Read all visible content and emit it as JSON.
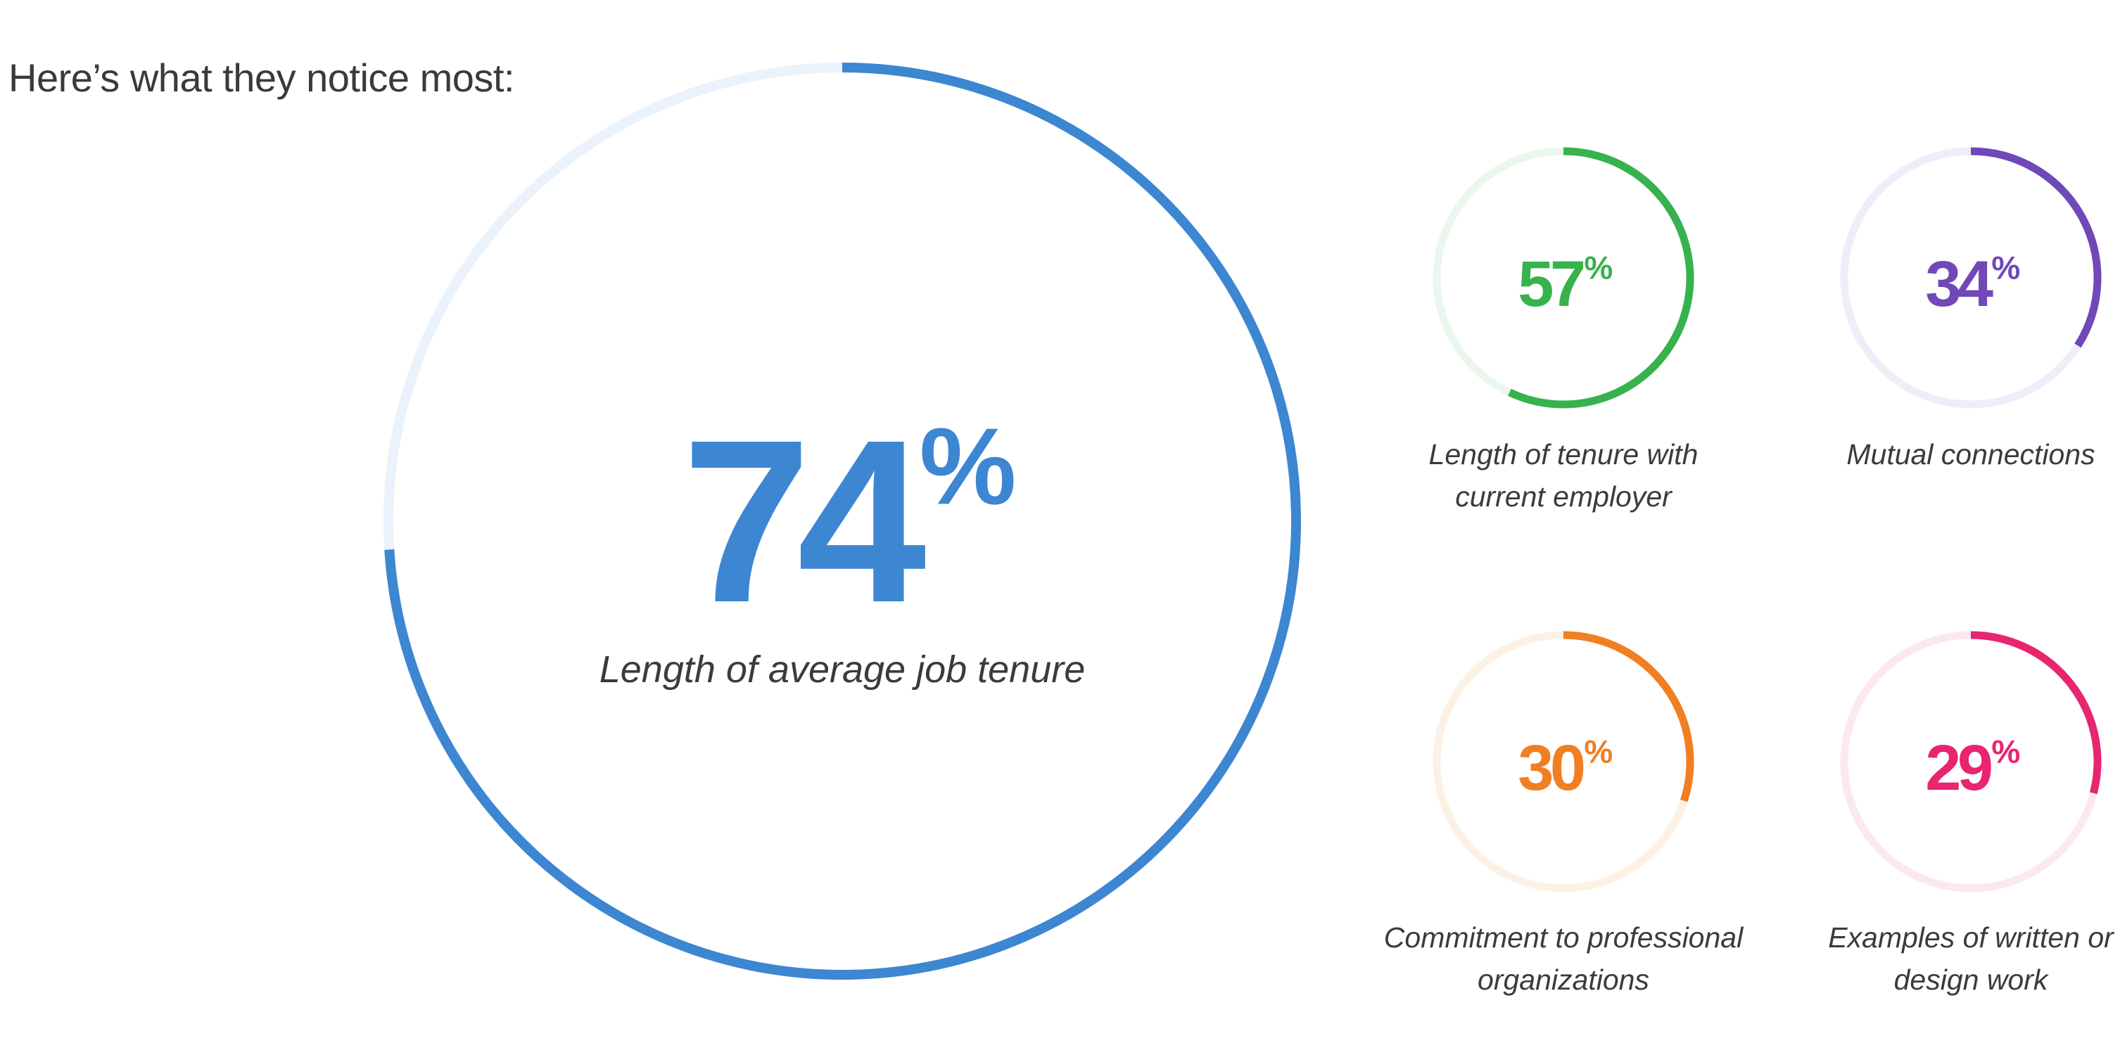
{
  "heading": "Here’s what they notice most:",
  "chart_data": {
    "type": "donut",
    "items": [
      {
        "value": 74,
        "value_label": "74",
        "unit": "%",
        "caption": [
          "Length of average job tenure"
        ],
        "color": "#3d86d1",
        "track_color": "#eaf2fb",
        "size": "large"
      },
      {
        "value": 57,
        "value_label": "57",
        "unit": "%",
        "caption": [
          "Length of tenure with",
          "current employer"
        ],
        "color": "#37b24d",
        "track_color": "#eaf7ec",
        "size": "small"
      },
      {
        "value": 34,
        "value_label": "34",
        "unit": "%",
        "caption": [
          "Mutual connections"
        ],
        "color": "#7048b8",
        "track_color": "#efedf7",
        "size": "small"
      },
      {
        "value": 30,
        "value_label": "30",
        "unit": "%",
        "caption": [
          "Commitment to professional",
          "organizations"
        ],
        "color": "#f07f22",
        "track_color": "#fdf1e6",
        "size": "small"
      },
      {
        "value": 29,
        "value_label": "29",
        "unit": "%",
        "caption": [
          "Examples of written or",
          "design work"
        ],
        "color": "#e8256f",
        "track_color": "#fbe9ef",
        "size": "small"
      }
    ]
  }
}
